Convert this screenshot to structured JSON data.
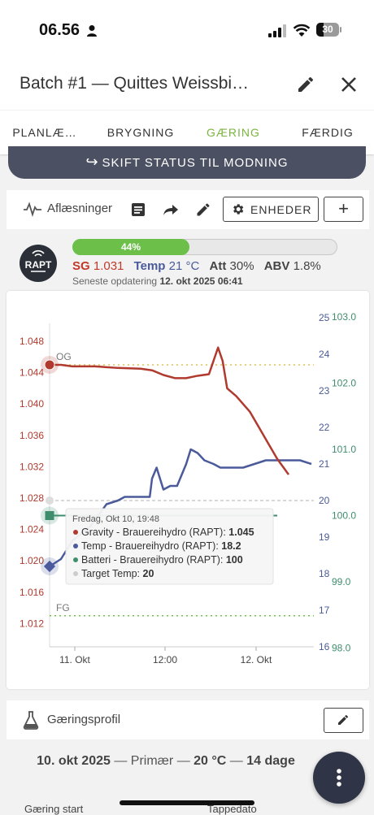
{
  "status_bar": {
    "time": "06.56",
    "battery": "30"
  },
  "app_bar": {
    "title": "Batch #1 — Quittes Weissbi…"
  },
  "tabs": [
    {
      "label": "PLANLÆ…"
    },
    {
      "label": "BRYGNING"
    },
    {
      "label": "GÆRING"
    },
    {
      "label": "FÆRDIG"
    }
  ],
  "active_tab_color": "#7cb342",
  "status_button": {
    "label": "SKIFT STATUS TIL MODNING"
  },
  "toolbar": {
    "readings_label": "Aflæsninger",
    "units_label": "ENHEDER"
  },
  "device": {
    "logo_text": "RAPT",
    "progress_percent": 44,
    "progress_label": "44%",
    "sg_label": "SG",
    "sg_value": "1.031",
    "temp_label": "Temp",
    "temp_value": "21 °C",
    "att_label": "Att",
    "att_value": "30%",
    "abv_label": "ABV",
    "abv_value": "1.8%",
    "updated_prefix": "Seneste opdatering",
    "updated_value": "12. okt 2025 06:41"
  },
  "chart_data": {
    "type": "line",
    "x_ticks": [
      "11. Okt",
      "12:00",
      "12. Okt"
    ],
    "y_left_ticks": [
      "1.048",
      "1.044",
      "1.040",
      "1.036",
      "1.032",
      "1.028",
      "1.024",
      "1.020",
      "1.016",
      "1.012"
    ],
    "y_temp_ticks": [
      "25",
      "24",
      "23",
      "22",
      "21",
      "20",
      "19",
      "18",
      "17",
      "16"
    ],
    "y_battery_ticks": [
      "103.0",
      "102.0",
      "101.0",
      "100.0",
      "99.0",
      "98.0"
    ],
    "annotations": [
      "OG",
      "FG"
    ],
    "og": 1.045,
    "fg": 1.013,
    "series": [
      {
        "name": "Gravity - Brauereihydro (RAPT)",
        "color": "#b03a2e",
        "axis": "left"
      },
      {
        "name": "Temp - Brauereihydro (RAPT)",
        "color": "#4a5a9a",
        "axis": "temp"
      },
      {
        "name": "Batteri - Brauereihydro (RAPT)",
        "color": "#3e8e6e",
        "axis": "battery"
      },
      {
        "name": "Target Temp",
        "color": "#cccccc",
        "axis": "temp"
      }
    ],
    "gravity": [
      [
        0,
        1.045
      ],
      [
        0.05,
        1.045
      ],
      [
        0.1,
        1.0448
      ],
      [
        0.2,
        1.0448
      ],
      [
        0.3,
        1.0446
      ],
      [
        0.4,
        1.0445
      ],
      [
        0.45,
        1.0443
      ],
      [
        0.5,
        1.0437
      ],
      [
        0.55,
        1.0433
      ],
      [
        0.6,
        1.0433
      ],
      [
        0.65,
        1.0436
      ],
      [
        0.7,
        1.0438
      ],
      [
        0.72,
        1.0455
      ],
      [
        0.74,
        1.0472
      ],
      [
        0.76,
        1.0455
      ],
      [
        0.78,
        1.042
      ],
      [
        0.82,
        1.041
      ],
      [
        0.88,
        1.039
      ],
      [
        0.92,
        1.037
      ],
      [
        0.96,
        1.035
      ],
      [
        1.0,
        1.033
      ],
      [
        1.05,
        1.031
      ]
    ],
    "temp": [
      [
        0,
        18.2
      ],
      [
        0.05,
        18.4
      ],
      [
        0.1,
        18.9
      ],
      [
        0.18,
        19.3
      ],
      [
        0.25,
        19.9
      ],
      [
        0.3,
        20.0
      ],
      [
        0.33,
        20.1
      ],
      [
        0.38,
        20.1
      ],
      [
        0.44,
        20.1
      ],
      [
        0.45,
        20.6
      ],
      [
        0.47,
        20.9
      ],
      [
        0.5,
        20.3
      ],
      [
        0.53,
        20.4
      ],
      [
        0.56,
        20.4
      ],
      [
        0.6,
        21.0
      ],
      [
        0.62,
        21.4
      ],
      [
        0.65,
        21.3
      ],
      [
        0.68,
        21.1
      ],
      [
        0.72,
        21.0
      ],
      [
        0.75,
        20.9
      ],
      [
        0.85,
        20.9
      ],
      [
        0.95,
        21.1
      ],
      [
        1.05,
        21.1
      ],
      [
        1.1,
        21.1
      ],
      [
        1.15,
        21.0
      ]
    ],
    "battery": [
      [
        0,
        100
      ],
      [
        1.0,
        100
      ]
    ],
    "target_temp": 20,
    "tooltip": {
      "title": "Fredag, Okt 10, 19:48",
      "rows": [
        {
          "label": "Gravity - Brauereihydro (RAPT):",
          "value": "1.045"
        },
        {
          "label": "Temp - Brauereihydro (RAPT):",
          "value": "18.2"
        },
        {
          "label": "Batteri - Brauereihydro (RAPT):",
          "value": "100"
        },
        {
          "label": "Target Temp:",
          "value": "20"
        }
      ]
    }
  },
  "profile": {
    "label": "Gæringsprofil",
    "date": "10. okt 2025",
    "dash1": "—",
    "phase": "Primær",
    "dash2": "—",
    "temp": "20 °C",
    "dash3": "—",
    "duration": "14 dage"
  },
  "footer": {
    "col1": "Gæring start",
    "col2": "Tappedato"
  }
}
